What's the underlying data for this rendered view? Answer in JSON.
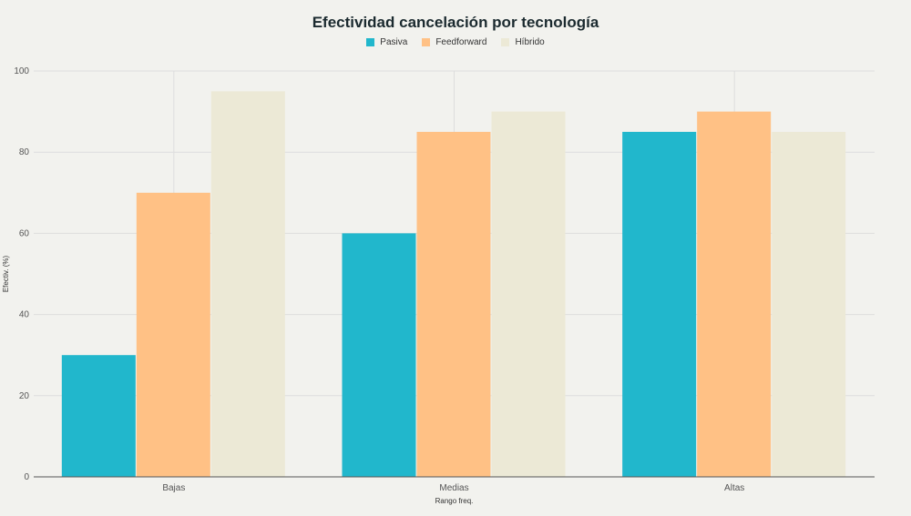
{
  "chart_data": {
    "type": "bar",
    "title": "Efectividad cancelación por tecnología",
    "xlabel": "Rango freq.",
    "ylabel": "Efectiv. (%)",
    "categories": [
      "Bajas",
      "Medias",
      "Altas"
    ],
    "series": [
      {
        "name": "Pasiva",
        "color": "#21b7cc",
        "values": [
          30,
          60,
          85
        ]
      },
      {
        "name": "Feedforward",
        "color": "#ffc185",
        "values": [
          70,
          85,
          90
        ]
      },
      {
        "name": "Híbrido",
        "color": "#ece9d6",
        "values": [
          95,
          90,
          85
        ]
      }
    ],
    "ylim": [
      0,
      100
    ],
    "yticks": [
      0,
      20,
      40,
      60,
      80,
      100
    ],
    "grid": true,
    "legend_position": "top-center"
  }
}
